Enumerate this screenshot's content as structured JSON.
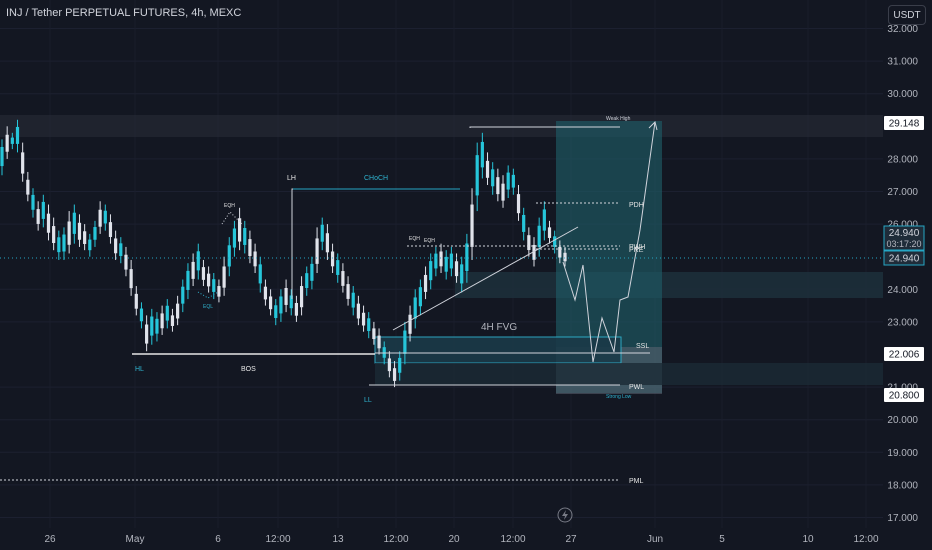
{
  "header": {
    "title": "INJ / Tether PERPETUAL FUTURES, 4h, MEXC"
  },
  "currency_button": "USDT",
  "chart_data": {
    "type": "candlestick",
    "symbol": "INJ / Tether PERPETUAL FUTURES",
    "timeframe": "4h",
    "exchange": "MEXC",
    "y_axis": {
      "ticks": [
        "32.000",
        "31.000",
        "30.000",
        "28.000",
        "27.000",
        "26.000",
        "24.000",
        "23.000",
        "21.000",
        "20.000",
        "19.000",
        "18.000",
        "17.000"
      ],
      "range": [
        16.8,
        32.3
      ]
    },
    "x_axis": {
      "ticks": [
        "26",
        "May",
        "6",
        "12:00",
        "13",
        "12:00",
        "20",
        "12:00",
        "27",
        "Jun",
        "5",
        "10",
        "12:00"
      ]
    },
    "price_labels": {
      "top": "29.148",
      "current": "24.940",
      "countdown": "03:17:20",
      "current_repeat": "24.940",
      "level_22": "22.006",
      "level_20": "20.800"
    },
    "annotations": {
      "weak_high": "Weak High",
      "pdh": "PDH",
      "pwh": "PWH",
      "pre": "PRE",
      "ssl": "SSL",
      "pwl": "PWL",
      "strong_low": "Strong Low",
      "pml": "PML",
      "fvg": "4H FVG",
      "lh": "LH",
      "choch": "CHoCH",
      "bos": "BOS",
      "hl": "HL",
      "ll": "LL",
      "eqh1": "EQH",
      "eqh2": "EQH",
      "eqh3": "EQH",
      "eql": "EQL"
    },
    "levels": {
      "weak_high": 29.0,
      "pdh": 26.6,
      "pwh": 25.25,
      "ssl": 22.05,
      "pwl": 21.05,
      "pml": 18.15,
      "current": 24.94
    },
    "candles": [
      [
        27.6,
        28.5
      ],
      [
        28.1,
        28.9
      ],
      [
        28.4,
        28.7
      ],
      [
        28.3,
        29.1
      ],
      [
        27.4,
        28.4
      ],
      [
        26.8,
        27.5
      ],
      [
        26.3,
        27.0
      ],
      [
        25.9,
        26.6
      ],
      [
        26.0,
        26.8
      ],
      [
        25.6,
        26.5
      ],
      [
        25.3,
        26.1
      ],
      [
        25.0,
        25.7
      ],
      [
        25.0,
        25.8
      ],
      [
        25.2,
        26.3
      ],
      [
        25.5,
        26.5
      ],
      [
        25.4,
        26.2
      ],
      [
        25.3,
        25.9
      ],
      [
        25.1,
        25.6
      ],
      [
        25.4,
        26.0
      ],
      [
        25.8,
        26.6
      ],
      [
        25.9,
        26.5
      ],
      [
        25.5,
        26.2
      ],
      [
        25.0,
        25.7
      ],
      [
        24.9,
        25.5
      ],
      [
        24.5,
        25.2
      ],
      [
        23.9,
        24.8
      ],
      [
        23.3,
        24.0
      ],
      [
        22.9,
        23.5
      ],
      [
        22.2,
        23.1
      ],
      [
        22.4,
        23.3
      ],
      [
        22.5,
        23.2
      ],
      [
        22.7,
        23.4
      ],
      [
        22.9,
        23.6
      ],
      [
        22.8,
        23.3
      ],
      [
        23.0,
        23.7
      ],
      [
        23.4,
        24.2
      ],
      [
        23.8,
        24.7
      ],
      [
        24.2,
        25.0
      ],
      [
        24.4,
        25.3
      ],
      [
        24.2,
        24.8
      ],
      [
        24.0,
        24.6
      ],
      [
        23.8,
        24.4
      ],
      [
        23.7,
        24.2
      ],
      [
        23.9,
        24.9
      ],
      [
        24.5,
        25.5
      ],
      [
        25.1,
        26.0
      ],
      [
        25.3,
        26.4
      ],
      [
        25.2,
        26.0
      ],
      [
        24.9,
        25.7
      ],
      [
        24.6,
        25.3
      ],
      [
        24.0,
        24.9
      ],
      [
        23.6,
        24.2
      ],
      [
        23.3,
        23.9
      ],
      [
        23.0,
        23.6
      ],
      [
        23.1,
        23.9
      ],
      [
        23.4,
        24.2
      ],
      [
        23.3,
        23.9
      ],
      [
        23.1,
        23.7
      ],
      [
        23.3,
        24.3
      ],
      [
        23.9,
        24.6
      ],
      [
        24.1,
        24.9
      ],
      [
        24.6,
        25.8
      ],
      [
        25.3,
        26.1
      ],
      [
        25.0,
        25.9
      ],
      [
        24.6,
        25.3
      ],
      [
        24.3,
        25.0
      ],
      [
        24.0,
        24.7
      ],
      [
        23.6,
        24.3
      ],
      [
        23.3,
        24.0
      ],
      [
        23.0,
        23.7
      ],
      [
        22.8,
        23.4
      ],
      [
        22.6,
        23.2
      ],
      [
        22.4,
        22.9
      ],
      [
        22.1,
        22.7
      ],
      [
        21.8,
        22.3
      ],
      [
        21.4,
        22.0
      ],
      [
        21.1,
        21.7
      ],
      [
        21.3,
        22.0
      ],
      [
        21.8,
        22.9
      ],
      [
        22.5,
        23.4
      ],
      [
        22.9,
        23.9
      ],
      [
        23.3,
        24.2
      ],
      [
        23.8,
        24.6
      ],
      [
        24.1,
        25.0
      ],
      [
        24.5,
        25.2
      ],
      [
        24.6,
        25.3
      ],
      [
        24.4,
        25.1
      ],
      [
        24.5,
        25.2
      ],
      [
        24.3,
        25.0
      ],
      [
        24.0,
        24.9
      ],
      [
        24.3,
        25.6
      ],
      [
        25.0,
        27.0
      ],
      [
        26.5,
        28.4
      ],
      [
        27.5,
        28.7
      ],
      [
        27.3,
        28.1
      ],
      [
        27.0,
        27.8
      ],
      [
        26.8,
        27.6
      ],
      [
        26.6,
        27.4
      ],
      [
        26.9,
        27.7
      ],
      [
        27.0,
        27.6
      ],
      [
        26.2,
        27.1
      ],
      [
        25.6,
        26.4
      ],
      [
        25.1,
        25.8
      ],
      [
        24.8,
        25.5
      ],
      [
        25.1,
        26.1
      ],
      [
        25.6,
        26.6
      ],
      [
        25.5,
        26.0
      ],
      [
        25.2,
        25.7
      ],
      [
        24.9,
        25.4
      ],
      [
        24.8,
        25.2
      ]
    ]
  }
}
